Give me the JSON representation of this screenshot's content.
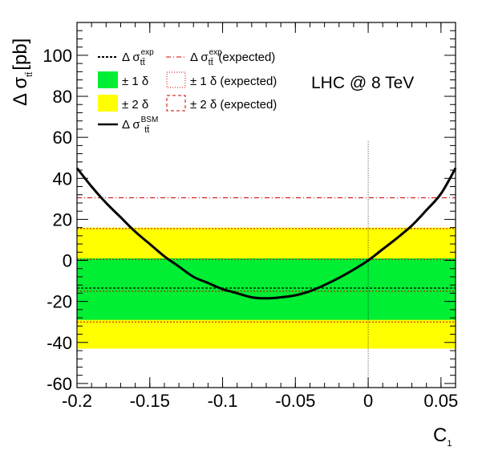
{
  "chart_data": {
    "type": "line",
    "title": "",
    "xlabel": "C",
    "xlabel_sub": "1",
    "ylabel_prefix": "Δ σ",
    "ylabel_sub": "tt̄",
    "ylabel_unit": "[pb]",
    "xlim": [
      -0.2,
      0.06
    ],
    "ylim": [
      -62,
      116
    ],
    "x_ticks": [
      -0.2,
      -0.15,
      -0.1,
      -0.05,
      0,
      0.05
    ],
    "x_tick_labels": [
      "-0.2",
      "-0.15",
      "-0.1",
      "-0.05",
      "0",
      "0.05"
    ],
    "y_ticks": [
      -60,
      -40,
      -20,
      0,
      20,
      40,
      60,
      80,
      100
    ],
    "y_tick_labels": [
      "-60",
      "-40",
      "-20",
      "0",
      "20",
      "40",
      "60",
      "80",
      "100"
    ],
    "grid": false,
    "legend_position": "top-left",
    "annotation": "LHC @ 8 TeV",
    "colors": {
      "band_1sigma": "#00ee33",
      "band_2sigma": "#ffff00",
      "expected": "#cc0000",
      "curve": "#000000"
    },
    "bands": [
      {
        "name": "± 2 δ",
        "y_low": -43,
        "y_high": 16,
        "color": "#ffff00"
      },
      {
        "name": "± 1 δ",
        "y_low": -29,
        "y_high": 1,
        "color": "#00ee33"
      }
    ],
    "expected_lines": [
      {
        "name": "Δ σ expected",
        "y": 30.5
      },
      {
        "name": "± 2 δ (expected) upper",
        "y": 15.5
      },
      {
        "name": "± 1 δ (expected) upper",
        "y": 0.5
      },
      {
        "name": "± 1 δ (expected) lower",
        "y": -15
      },
      {
        "name": "± 2 δ (expected) lower",
        "y": -30
      }
    ],
    "measured_line": {
      "name": "Δ σ exp",
      "y": -13.5
    },
    "vertical_marker": {
      "x": 0,
      "y_top": 58
    },
    "series": [
      {
        "name": "Δ σ BSM",
        "x": [
          -0.2,
          -0.19,
          -0.18,
          -0.17,
          -0.16,
          -0.15,
          -0.14,
          -0.13,
          -0.12,
          -0.11,
          -0.1,
          -0.09,
          -0.08,
          -0.07,
          -0.06,
          -0.05,
          -0.04,
          -0.03,
          -0.02,
          -0.01,
          0,
          0.01,
          0.02,
          0.03,
          0.04,
          0.05,
          0.06
        ],
        "y": [
          45,
          36,
          28,
          21,
          14,
          8,
          2,
          -3,
          -8,
          -11,
          -14,
          -16,
          -18,
          -18.5,
          -18,
          -17,
          -15,
          -12,
          -8.5,
          -4.5,
          0,
          5.5,
          11,
          17,
          24.5,
          32.5,
          45
        ]
      }
    ],
    "legend": [
      {
        "key": "exp",
        "label": "Δ σ",
        "sup": "exp",
        "sub": "tt̄"
      },
      {
        "key": "exp-expected",
        "label": "Δ σ",
        "sup": "exp",
        "sub": "tt̄",
        "suffix": " (expected)"
      },
      {
        "key": "one-delta",
        "label": "± 1 δ"
      },
      {
        "key": "one-delta-expected",
        "label": "± 1 δ (expected)"
      },
      {
        "key": "two-delta",
        "label": "± 2 δ"
      },
      {
        "key": "two-delta-expected",
        "label": "± 2 δ (expected)"
      },
      {
        "key": "bsm",
        "label": "Δ σ",
        "sup": "BSM",
        "sub": "tt̄"
      }
    ]
  }
}
